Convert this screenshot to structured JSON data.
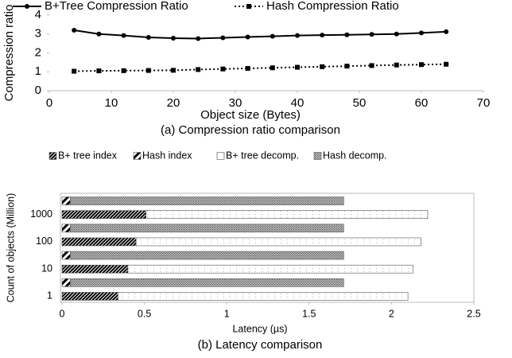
{
  "chart_data": [
    {
      "type": "line",
      "x": [
        4,
        8,
        12,
        16,
        20,
        24,
        28,
        32,
        36,
        40,
        44,
        48,
        52,
        56,
        60,
        64
      ],
      "series": [
        {
          "name": "B+Tree Compression Ratio",
          "color": "#000000",
          "marker": "circle",
          "dash": "solid",
          "values": [
            3.2,
            3.0,
            2.92,
            2.82,
            2.78,
            2.76,
            2.8,
            2.84,
            2.88,
            2.92,
            2.94,
            2.96,
            2.98,
            3.0,
            3.06,
            3.12
          ]
        },
        {
          "name": "Hash Compression Ratio",
          "color": "#000000",
          "marker": "square",
          "dash": "dotted",
          "values": [
            1.03,
            1.05,
            1.06,
            1.07,
            1.08,
            1.12,
            1.15,
            1.18,
            1.21,
            1.24,
            1.27,
            1.3,
            1.33,
            1.36,
            1.38,
            1.4
          ]
        }
      ],
      "xlim": [
        0,
        70
      ],
      "xticks": [
        0,
        10,
        20,
        30,
        40,
        50,
        60,
        70
      ],
      "ylim": [
        0,
        4
      ],
      "yticks": [
        0,
        1,
        2,
        3,
        4
      ],
      "xlabel": "Object size (Bytes)",
      "ylabel": "Compression ratio",
      "caption": "(a) Compression ratio comparison",
      "legend": "top"
    },
    {
      "type": "bar",
      "orientation": "horizontal",
      "categories": [
        "1",
        "10",
        "100",
        "1000"
      ],
      "series": [
        {
          "name": "B+ tree index",
          "color": "#000000",
          "pattern": "dense-diagonal",
          "values": [
            0.34,
            0.4,
            0.45,
            0.51
          ]
        },
        {
          "name": "Hash index",
          "color": "#000000",
          "pattern": "diagonal",
          "values": [
            0.05,
            0.05,
            0.05,
            0.05
          ]
        },
        {
          "name": "B+ tree decomp.",
          "color": "#ffffff",
          "pattern": "dots",
          "values": [
            1.76,
            1.73,
            1.73,
            1.71
          ]
        },
        {
          "name": "Hash decomp.",
          "color": "#999999",
          "pattern": "crosshatch",
          "values": [
            1.66,
            1.66,
            1.66,
            1.66
          ]
        }
      ],
      "stacks": [
        [
          1,
          3
        ],
        [
          0,
          2
        ]
      ],
      "xlim": [
        0,
        2.5
      ],
      "xticks": [
        0,
        0.5,
        1,
        1.5,
        2,
        2.5
      ],
      "xlabel": "Latency (µs)",
      "ylabel": "Count of objects (Million)",
      "caption": "(b) Latency comparison",
      "legend": "top"
    }
  ]
}
